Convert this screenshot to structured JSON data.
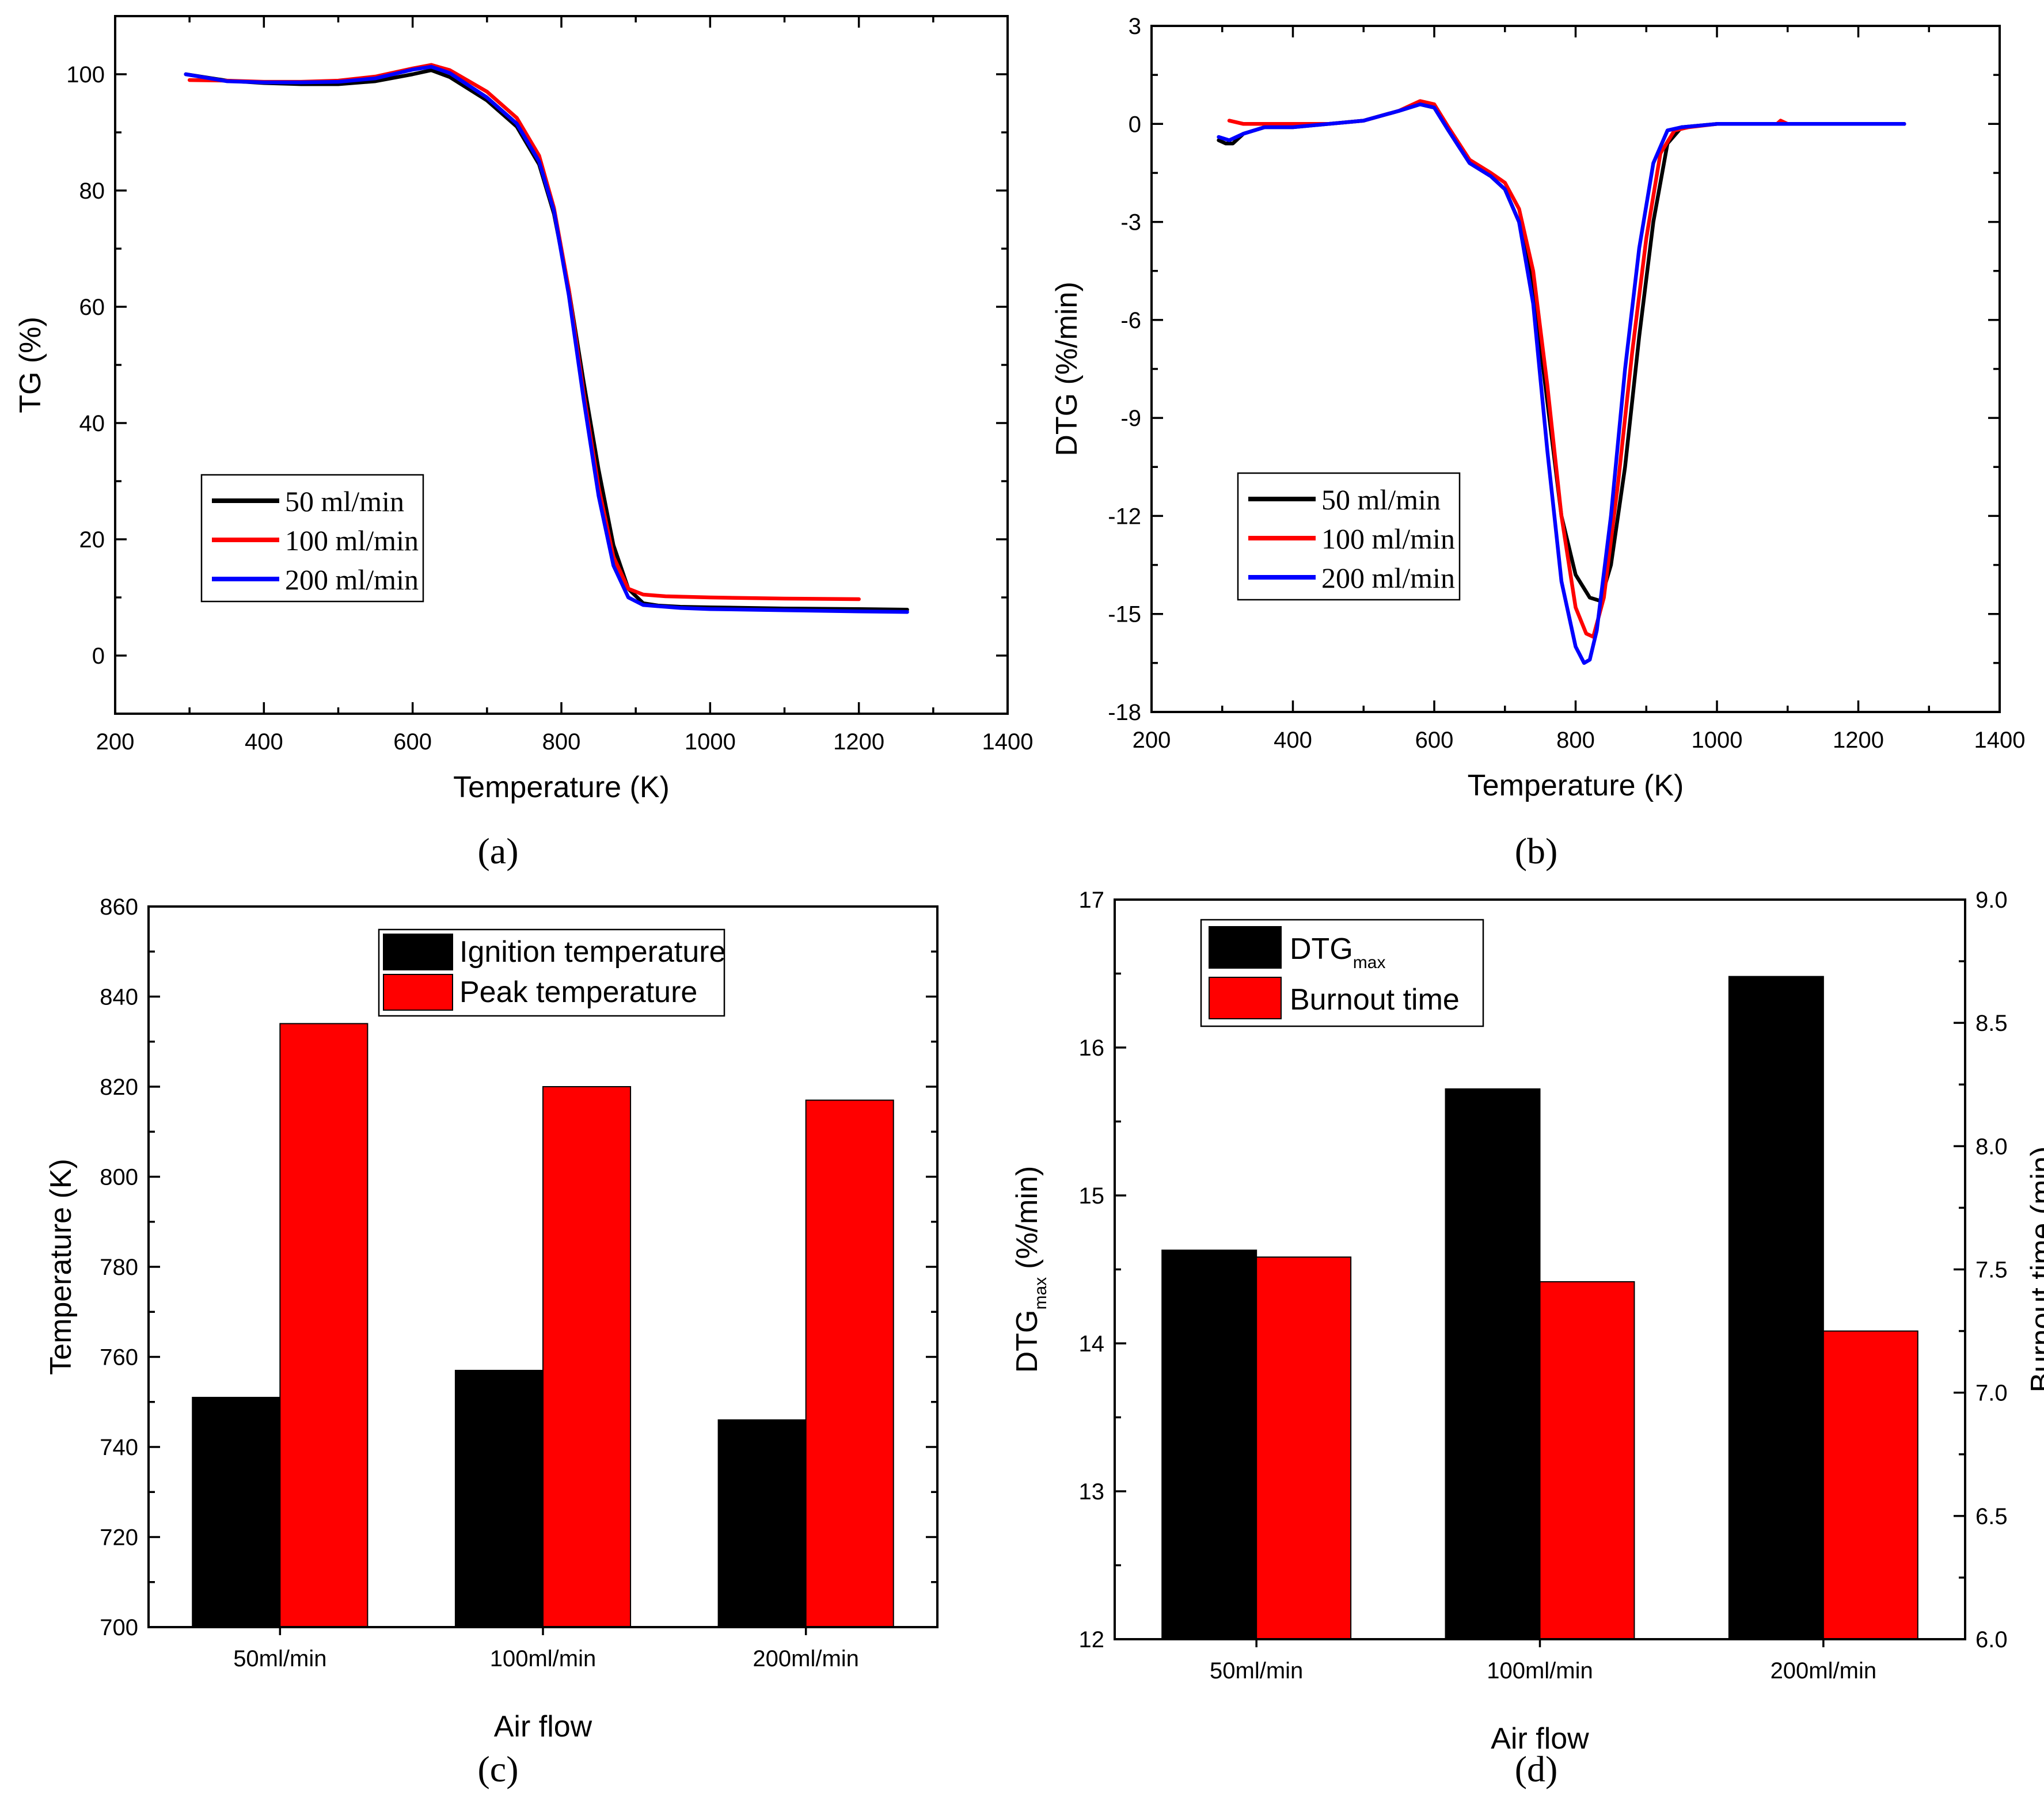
{
  "colors": {
    "black": "#000000",
    "red": "#ff0000",
    "blue": "#0000ff"
  },
  "chart_data": [
    {
      "id": "a",
      "type": "line",
      "panel_label": "(a)",
      "xlabel": "Temperature (K)",
      "ylabel": "TG (%)",
      "xlim": [
        200,
        1400
      ],
      "ylim": [
        -10,
        110
      ],
      "xticks": [
        200,
        400,
        600,
        800,
        1000,
        1200,
        1400
      ],
      "yticks": [
        0,
        20,
        40,
        60,
        80,
        100
      ],
      "legend_position": "lower-left",
      "series": [
        {
          "name": "50 ml/min",
          "color": "#000000",
          "x": [
            295,
            350,
            400,
            450,
            500,
            550,
            600,
            625,
            650,
            700,
            740,
            770,
            790,
            810,
            830,
            850,
            870,
            890,
            910,
            930,
            960,
            1000,
            1100,
            1200,
            1265
          ],
          "y": [
            100,
            98.9,
            98.5,
            98.3,
            98.3,
            98.8,
            100.0,
            100.7,
            99.5,
            95.5,
            91.0,
            84.5,
            76.0,
            63.0,
            47.0,
            32.0,
            19.0,
            11.5,
            9.0,
            8.6,
            8.4,
            8.3,
            8.1,
            8.0,
            7.9
          ]
        },
        {
          "name": "100 ml/min",
          "color": "#ff0000",
          "x": [
            300,
            350,
            400,
            450,
            500,
            550,
            600,
            625,
            650,
            700,
            740,
            770,
            790,
            810,
            830,
            850,
            870,
            890,
            910,
            940,
            1000,
            1100,
            1200
          ],
          "y": [
            99,
            98.9,
            98.7,
            98.7,
            98.9,
            99.6,
            101.0,
            101.6,
            100.7,
            97.0,
            92.5,
            86.0,
            77.0,
            63.0,
            45.0,
            29.0,
            17.0,
            11.5,
            10.5,
            10.2,
            10.0,
            9.8,
            9.7
          ]
        },
        {
          "name": "200 ml/min",
          "color": "#0000ff",
          "x": [
            295,
            350,
            400,
            450,
            500,
            550,
            600,
            625,
            650,
            700,
            740,
            770,
            790,
            810,
            830,
            850,
            870,
            890,
            910,
            930,
            960,
            1000,
            1100,
            1200,
            1265
          ],
          "y": [
            100,
            98.8,
            98.6,
            98.6,
            98.7,
            99.3,
            100.8,
            101.3,
            100.2,
            96.0,
            91.5,
            85.0,
            76.5,
            62.0,
            44.0,
            27.5,
            15.5,
            10.0,
            8.7,
            8.5,
            8.2,
            8.0,
            7.8,
            7.6,
            7.5
          ]
        }
      ]
    },
    {
      "id": "b",
      "type": "line",
      "panel_label": "(b)",
      "xlabel": "Temperature (K)",
      "ylabel": "DTG (%/min)",
      "xlim": [
        200,
        1400
      ],
      "ylim": [
        -18,
        3
      ],
      "xticks": [
        200,
        400,
        600,
        800,
        1000,
        1200,
        1400
      ],
      "yticks": [
        -18,
        -15,
        -12,
        -9,
        -6,
        -3,
        0,
        3
      ],
      "legend_position": "lower-left",
      "series": [
        {
          "name": "50 ml/min",
          "color": "#000000",
          "x": [
            295,
            305,
            315,
            330,
            360,
            400,
            450,
            500,
            550,
            580,
            600,
            620,
            650,
            680,
            700,
            720,
            740,
            760,
            780,
            800,
            820,
            835,
            850,
            870,
            890,
            910,
            930,
            950,
            1000,
            1100,
            1200,
            1265
          ],
          "y": [
            -0.5,
            -0.6,
            -0.6,
            -0.3,
            -0.1,
            -0.1,
            0.0,
            0.1,
            0.4,
            0.6,
            0.5,
            -0.2,
            -1.2,
            -1.6,
            -2.0,
            -3.0,
            -5.0,
            -8.5,
            -12.0,
            -13.8,
            -14.5,
            -14.6,
            -13.5,
            -10.5,
            -6.5,
            -3.0,
            -0.6,
            -0.1,
            0.0,
            0.0,
            0.0,
            0.0
          ]
        },
        {
          "name": "100 ml/min",
          "color": "#ff0000",
          "x": [
            310,
            330,
            360,
            400,
            450,
            500,
            550,
            580,
            600,
            620,
            650,
            680,
            700,
            720,
            740,
            760,
            780,
            800,
            815,
            825,
            840,
            860,
            880,
            900,
            920,
            940,
            960,
            1000,
            1085,
            1090,
            1100,
            1200,
            1265
          ],
          "y": [
            0.1,
            0.0,
            0.0,
            0.0,
            0.0,
            0.1,
            0.4,
            0.7,
            0.6,
            -0.1,
            -1.1,
            -1.5,
            -1.8,
            -2.6,
            -4.5,
            -8.0,
            -12.0,
            -14.8,
            -15.6,
            -15.7,
            -14.5,
            -11.0,
            -7.0,
            -3.5,
            -0.9,
            -0.2,
            -0.1,
            0.0,
            0.0,
            0.1,
            0.0,
            0.0,
            0.0
          ]
        },
        {
          "name": "200 ml/min",
          "color": "#0000ff",
          "x": [
            295,
            310,
            330,
            360,
            400,
            450,
            500,
            550,
            580,
            600,
            620,
            650,
            680,
            700,
            720,
            740,
            760,
            780,
            800,
            812,
            820,
            830,
            850,
            870,
            890,
            910,
            930,
            950,
            1000,
            1100,
            1200,
            1265
          ],
          "y": [
            -0.4,
            -0.5,
            -0.3,
            -0.1,
            -0.1,
            0.0,
            0.1,
            0.4,
            0.6,
            0.5,
            -0.2,
            -1.2,
            -1.6,
            -2.0,
            -3.0,
            -5.5,
            -10.0,
            -14.0,
            -16.0,
            -16.5,
            -16.4,
            -15.5,
            -12.0,
            -7.5,
            -3.8,
            -1.2,
            -0.2,
            -0.1,
            0.0,
            0.0,
            0.0,
            0.0
          ]
        }
      ]
    },
    {
      "id": "c",
      "type": "bar",
      "panel_label": "(c)",
      "xlabel": "Air flow",
      "ylabel": "Temperature (K)",
      "ylim": [
        700,
        860
      ],
      "yticks": [
        700,
        720,
        740,
        760,
        780,
        800,
        820,
        840,
        860
      ],
      "categories": [
        "50ml/min",
        "100ml/min",
        "200ml/min"
      ],
      "legend_position": "top-center",
      "series": [
        {
          "name": "Ignition temperature",
          "color": "#000000",
          "values": [
            751,
            757,
            746
          ]
        },
        {
          "name": "Peak temperature",
          "color": "#ff0000",
          "values": [
            834,
            820,
            817
          ]
        }
      ]
    },
    {
      "id": "d",
      "type": "bar",
      "panel_label": "(d)",
      "xlabel": "Air flow",
      "ylabel": "DTG",
      "ylabel_sub": "max",
      "ylabel_tail": "(%/min)",
      "ylim": [
        12,
        17
      ],
      "yticks": [
        12,
        13,
        14,
        15,
        16,
        17
      ],
      "y2label": "Burnout time (min)",
      "y2lim": [
        6.0,
        9.0
      ],
      "y2ticks": [
        "6.0",
        "6.5",
        "7.0",
        "7.5",
        "8.0",
        "8.5",
        "9.0"
      ],
      "categories": [
        "50ml/min",
        "100ml/min",
        "200ml/min"
      ],
      "legend_position": "top-left",
      "series": [
        {
          "name": "DTG",
          "name_sub": "max",
          "color": "#000000",
          "axis": "left",
          "values": [
            14.63,
            15.72,
            16.48
          ]
        },
        {
          "name": "Burnout time",
          "color": "#ff0000",
          "axis": "right",
          "values": [
            7.55,
            7.45,
            7.25
          ]
        }
      ]
    }
  ]
}
